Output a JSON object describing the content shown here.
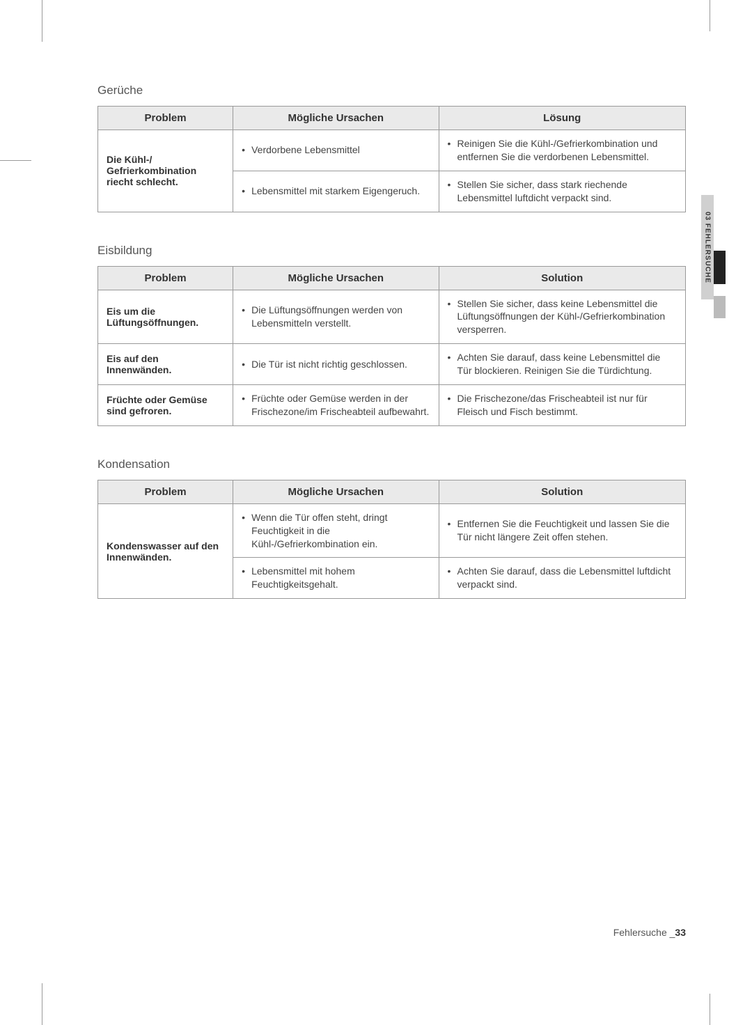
{
  "sideTab": {
    "text": "03  FEHLERSUCHE"
  },
  "sections": [
    {
      "title": "Gerüche",
      "headers": [
        "Problem",
        "Mögliche Ursachen",
        "Lösung"
      ],
      "groups": [
        {
          "problem": "Die Kühl-/\nGefrierkombination riecht schlecht.",
          "rows": [
            {
              "cause": "Verdorbene Lebensmittel",
              "solution": "Reinigen Sie die Kühl-/Gefrierkombination und entfernen Sie die verdorbenen Lebensmittel."
            },
            {
              "cause": "Lebensmittel mit starkem Eigengeruch.",
              "solution": "Stellen Sie sicher, dass stark riechende Lebensmittel luftdicht verpackt sind."
            }
          ]
        }
      ]
    },
    {
      "title": "Eisbildung",
      "headers": [
        "Problem",
        "Mögliche Ursachen",
        "Solution"
      ],
      "groups": [
        {
          "problem": "Eis um die Lüftungsöffnungen.",
          "rows": [
            {
              "cause": "Die Lüftungsöffnungen werden von Lebensmitteln verstellt.",
              "solution": "Stellen Sie sicher, dass keine Lebensmittel die Lüftungsöffnungen der Kühl-/Gefrierkombination versperren."
            }
          ]
        },
        {
          "problem": "Eis auf den Innenwänden.",
          "rows": [
            {
              "cause": "Die Tür ist nicht richtig geschlossen.",
              "solution": "Achten Sie darauf, dass keine Lebensmittel die Tür blockieren. Reinigen Sie die Türdichtung."
            }
          ]
        },
        {
          "problem": "Früchte oder Gemüse sind gefroren.",
          "rows": [
            {
              "cause": "Früchte oder Gemüse werden in der Frischezone/im Frischeabteil aufbewahrt.",
              "solution": "Die Frischezone/das Frischeabteil ist nur für Fleisch und Fisch bestimmt."
            }
          ]
        }
      ]
    },
    {
      "title": "Kondensation",
      "headers": [
        "Problem",
        "Mögliche Ursachen",
        "Solution"
      ],
      "groups": [
        {
          "problem": "Kondenswasser auf den Innenwänden.",
          "rows": [
            {
              "cause": "Wenn die Tür offen steht, dringt Feuchtigkeit in die Kühl-/Gefrierkombination ein.",
              "solution": "Entfernen Sie die Feuchtigkeit und lassen Sie die Tür nicht längere Zeit offen stehen."
            },
            {
              "cause": "Lebensmittel mit hohem Feuchtigkeitsgehalt.",
              "solution": "Achten Sie darauf, dass die Lebensmittel luftdicht verpackt sind."
            }
          ]
        }
      ]
    }
  ],
  "footer": {
    "text": "Fehlersuche _",
    "pageNum": "33"
  }
}
